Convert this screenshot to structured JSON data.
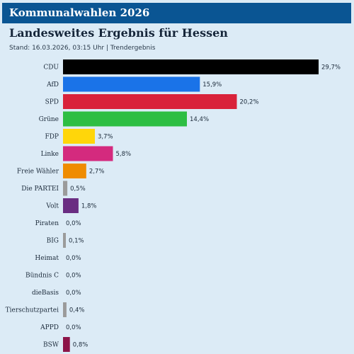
{
  "header": {
    "app_title": "Kommunalwahlen 2026",
    "title": "Landesweites Ergebnis für Hessen",
    "subtitle": "Stand: 16.03.2026, 03:15 Uhr | Trendergebnis"
  },
  "chart_data": {
    "type": "bar",
    "orientation": "horizontal",
    "categories": [
      "CDU",
      "AfD",
      "SPD",
      "Grüne",
      "FDP",
      "Linke",
      "Freie Wähler",
      "Die PARTEI",
      "Volt",
      "Piraten",
      "BIG",
      "Heimat",
      "Bündnis C",
      "dieBasis",
      "Tierschutzpartei",
      "APPD",
      "BSW"
    ],
    "values": [
      29.7,
      15.9,
      20.2,
      14.4,
      3.7,
      5.8,
      2.7,
      0.5,
      1.8,
      0.0,
      0.1,
      0.0,
      0.0,
      0.0,
      0.4,
      0.0,
      0.8
    ],
    "value_labels": [
      "29,7%",
      "15,9%",
      "20,2%",
      "14,4%",
      "3,7%",
      "5,8%",
      "2,7%",
      "0,5%",
      "1,8%",
      "0,0%",
      "0,1%",
      "0,0%",
      "0,0%",
      "0,0%",
      "0,4%",
      "0,0%",
      "0,8%"
    ],
    "colors": [
      "#000000",
      "#1a73e8",
      "#d9223a",
      "#2dbe43",
      "#ffd60a",
      "#d42a7e",
      "#ef8c00",
      "#9b9b9b",
      "#6a2d82",
      "#9b9b9b",
      "#9b9b9b",
      "#9b9b9b",
      "#9b9b9b",
      "#9b9b9b",
      "#9b9b9b",
      "#9b9b9b",
      "#8c1448"
    ],
    "xlim": [
      0,
      29.7
    ],
    "grid": false,
    "legend": "none"
  }
}
